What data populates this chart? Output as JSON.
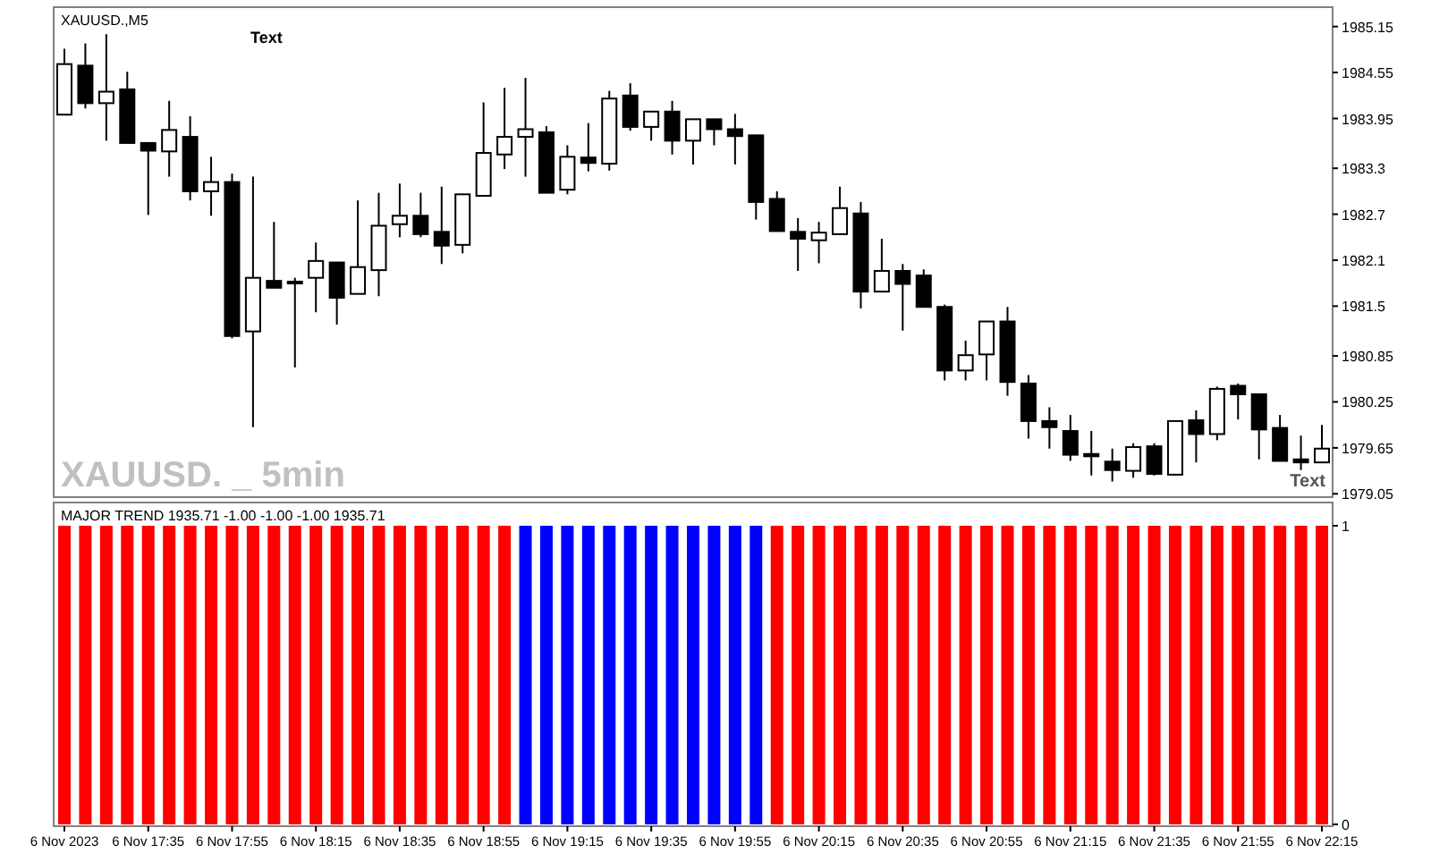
{
  "chart_data": [
    {
      "type": "candlestick",
      "title": "XAUUSD.,M5",
      "annotations": [
        "Text",
        "XAUUSD. _ 5min",
        "Text"
      ],
      "categories": [
        null,
        null,
        null,
        null,
        null,
        null,
        null,
        null,
        null,
        null,
        null,
        null,
        null,
        null,
        null,
        null,
        null,
        null,
        null,
        null,
        null,
        null,
        null,
        null,
        null,
        null,
        null,
        null,
        null,
        null,
        null,
        null,
        null,
        null,
        null,
        null,
        null,
        null,
        null,
        null,
        null,
        null,
        null,
        null,
        null,
        null,
        null,
        null,
        null,
        null,
        null,
        null,
        null,
        null,
        null,
        null,
        null,
        null,
        null,
        null,
        null
      ],
      "ohlc": [
        [
          1984.0,
          1984.86,
          1984.0,
          1984.66
        ],
        [
          1984.64,
          1984.93,
          1984.08,
          1984.15
        ],
        [
          1984.15,
          1985.05,
          1983.66,
          1984.3
        ],
        [
          1984.33,
          1984.56,
          1983.63,
          1983.63
        ],
        [
          1983.63,
          1983.63,
          1982.69,
          1983.53
        ],
        [
          1983.52,
          1984.18,
          1983.19,
          1983.8
        ],
        [
          1983.71,
          1983.98,
          1982.88,
          1983.0
        ],
        [
          1983.0,
          1983.45,
          1982.68,
          1983.12
        ],
        [
          1983.12,
          1983.23,
          1981.08,
          1981.11
        ],
        [
          1981.17,
          1983.19,
          1979.92,
          1981.87
        ],
        [
          1981.83,
          1982.6,
          1981.74,
          1981.74
        ],
        [
          1981.82,
          1981.87,
          1980.7,
          1981.81
        ],
        [
          1981.87,
          1982.33,
          1981.42,
          1982.09
        ],
        [
          1982.07,
          1982.07,
          1981.26,
          1981.61
        ],
        [
          1981.66,
          1982.88,
          1981.66,
          1982.01
        ],
        [
          1981.97,
          1982.98,
          1981.63,
          1982.55
        ],
        [
          1982.57,
          1983.1,
          1982.4,
          1982.68
        ],
        [
          1982.68,
          1982.98,
          1982.4,
          1982.44
        ],
        [
          1982.47,
          1983.06,
          1982.05,
          1982.29
        ],
        [
          1982.3,
          1982.96,
          1982.19,
          1982.96
        ],
        [
          1982.94,
          1984.16,
          1982.94,
          1983.5
        ],
        [
          1983.48,
          1984.35,
          1983.29,
          1983.71
        ],
        [
          1983.71,
          1984.48,
          1983.19,
          1983.81
        ],
        [
          1983.77,
          1983.85,
          1982.98,
          1982.98
        ],
        [
          1983.02,
          1983.6,
          1982.96,
          1983.45
        ],
        [
          1983.44,
          1983.89,
          1983.26,
          1983.37
        ],
        [
          1983.36,
          1984.31,
          1983.27,
          1984.21
        ],
        [
          1984.25,
          1984.41,
          1983.79,
          1983.84
        ],
        [
          1983.84,
          1984.04,
          1983.66,
          1984.04
        ],
        [
          1984.04,
          1984.18,
          1983.48,
          1983.66
        ],
        [
          1983.66,
          1983.94,
          1983.35,
          1983.94
        ],
        [
          1983.94,
          1983.94,
          1983.6,
          1983.81
        ],
        [
          1983.81,
          1984.01,
          1983.35,
          1983.72
        ],
        [
          1983.73,
          1983.73,
          1982.63,
          1982.86
        ],
        [
          1982.9,
          1983.0,
          1982.48,
          1982.48
        ],
        [
          1982.47,
          1982.65,
          1981.96,
          1982.38
        ],
        [
          1982.36,
          1982.6,
          1982.06,
          1982.46
        ],
        [
          1982.44,
          1983.06,
          1982.44,
          1982.78
        ],
        [
          1982.71,
          1982.86,
          1981.47,
          1981.69
        ],
        [
          1981.69,
          1982.38,
          1981.69,
          1981.96
        ],
        [
          1981.96,
          1982.05,
          1981.18,
          1981.79
        ],
        [
          1981.9,
          1981.98,
          1981.49,
          1981.49
        ],
        [
          1981.49,
          1981.52,
          1980.53,
          1980.66
        ],
        [
          1980.66,
          1981.05,
          1980.53,
          1980.86
        ],
        [
          1980.87,
          1981.3,
          1980.53,
          1981.3
        ],
        [
          1981.3,
          1981.49,
          1980.33,
          1980.51
        ],
        [
          1980.49,
          1980.6,
          1979.77,
          1980.0
        ],
        [
          1980.0,
          1980.18,
          1979.64,
          1979.92
        ],
        [
          1979.87,
          1980.08,
          1979.48,
          1979.56
        ],
        [
          1979.57,
          1979.87,
          1979.29,
          1979.54
        ],
        [
          1979.47,
          1979.64,
          1979.21,
          1979.36
        ],
        [
          1979.35,
          1979.71,
          1979.26,
          1979.66
        ],
        [
          1979.67,
          1979.71,
          1979.29,
          1979.31
        ],
        [
          1979.3,
          1980.0,
          1979.29,
          1980.0
        ],
        [
          1980.01,
          1980.14,
          1979.46,
          1979.83
        ],
        [
          1979.83,
          1980.45,
          1979.75,
          1980.42
        ],
        [
          1980.46,
          1980.49,
          1980.02,
          1980.35
        ],
        [
          1980.35,
          1980.35,
          1979.5,
          1979.89
        ],
        [
          1979.91,
          1980.08,
          1979.48,
          1979.48
        ],
        [
          1979.5,
          1979.81,
          1979.36,
          1979.46
        ],
        [
          1979.46,
          1979.95,
          1979.46,
          1979.64
        ]
      ],
      "ylim": [
        1979.03,
        1985.38
      ],
      "yticks": [
        1985.15,
        1984.55,
        1983.95,
        1983.3,
        1982.7,
        1982.1,
        1981.5,
        1980.85,
        1980.25,
        1979.65,
        1979.05
      ],
      "tick_labels": "y"
    },
    {
      "type": "bar",
      "title": "MAJOR TREND 1935.71 -1.00 -1.00 -1.00 1935.71",
      "categories": [
        "6 Nov 2023",
        null,
        null,
        null,
        "6 Nov 17:35",
        null,
        null,
        null,
        "6 Nov 17:55",
        null,
        null,
        null,
        "6 Nov 18:15",
        null,
        null,
        null,
        "6 Nov 18:35",
        null,
        null,
        null,
        "6 Nov 18:55",
        null,
        null,
        null,
        "6 Nov 19:15",
        null,
        null,
        null,
        "6 Nov 19:35",
        null,
        null,
        null,
        "6 Nov 19:55",
        null,
        null,
        null,
        "6 Nov 20:15",
        null,
        null,
        null,
        "6 Nov 20:35",
        null,
        null,
        null,
        "6 Nov 20:55",
        null,
        null,
        null,
        "6 Nov 21:15",
        null,
        null,
        null,
        "6 Nov 21:35",
        null,
        null,
        null,
        "6 Nov 21:55",
        null,
        null,
        null,
        "6 Nov 22:15"
      ],
      "values": [
        1,
        1,
        1,
        1,
        1,
        1,
        1,
        1,
        1,
        1,
        1,
        1,
        1,
        1,
        1,
        1,
        1,
        1,
        1,
        1,
        1,
        1,
        1,
        1,
        1,
        1,
        1,
        1,
        1,
        1,
        1,
        1,
        1,
        1,
        1,
        1,
        1,
        1,
        1,
        1,
        1,
        1,
        1,
        1,
        1,
        1,
        1,
        1,
        1,
        1,
        1,
        1,
        1,
        1,
        1,
        1,
        1,
        1,
        1,
        1,
        1
      ],
      "colors": [
        "#ff0000",
        "#ff0000",
        "#ff0000",
        "#ff0000",
        "#ff0000",
        "#ff0000",
        "#ff0000",
        "#ff0000",
        "#ff0000",
        "#ff0000",
        "#ff0000",
        "#ff0000",
        "#ff0000",
        "#ff0000",
        "#ff0000",
        "#ff0000",
        "#ff0000",
        "#ff0000",
        "#ff0000",
        "#ff0000",
        "#ff0000",
        "#ff0000",
        "#0000ff",
        "#0000ff",
        "#0000ff",
        "#0000ff",
        "#0000ff",
        "#0000ff",
        "#0000ff",
        "#0000ff",
        "#0000ff",
        "#0000ff",
        "#0000ff",
        "#0000ff",
        "#ff0000",
        "#ff0000",
        "#ff0000",
        "#ff0000",
        "#ff0000",
        "#ff0000",
        "#ff0000",
        "#ff0000",
        "#ff0000",
        "#ff0000",
        "#ff0000",
        "#ff0000",
        "#ff0000",
        "#ff0000",
        "#ff0000",
        "#ff0000",
        "#ff0000",
        "#ff0000",
        "#ff0000",
        "#ff0000",
        "#ff0000",
        "#ff0000",
        "#ff0000",
        "#ff0000",
        "#ff0000",
        "#ff0000",
        "#ff0000"
      ],
      "ylim": [
        0,
        1
      ],
      "yticks": [
        0,
        1
      ]
    }
  ]
}
